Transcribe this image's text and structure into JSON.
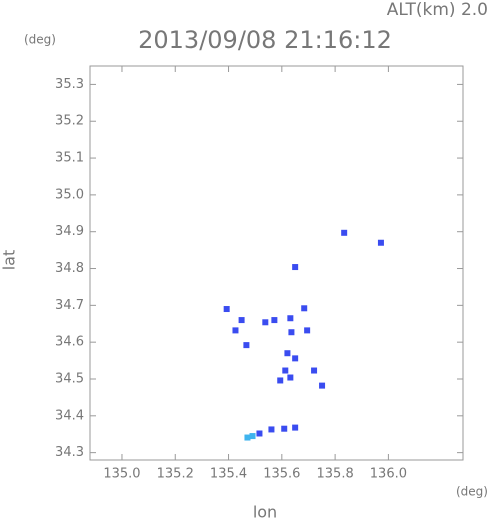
{
  "chart_data": {
    "type": "scatter",
    "title": "2013/09/08 21:16:12",
    "altitude": "ALT(km) 2.0",
    "y_unit": "(deg)",
    "x_unit": "(deg)",
    "x_label": "lon",
    "y_label": "lat",
    "xlim": [
      134.88,
      136.28
    ],
    "ylim": [
      34.28,
      35.35
    ],
    "xticks": [
      {
        "value": 135,
        "label": "135.0"
      },
      135.2,
      135.4,
      135.6,
      135.8,
      {
        "value": 136,
        "label": "136.0"
      }
    ],
    "yticks": [
      34.3,
      34.4,
      34.5,
      34.6,
      34.7,
      34.8,
      34.9,
      {
        "value": 35,
        "label": "35.0"
      },
      35.1,
      35.2,
      35.3
    ],
    "series": [
      {
        "color": "#3a4cf0",
        "x": [
          135.426,
          135.393,
          135.449,
          135.538,
          135.572,
          135.632,
          135.65,
          135.684,
          135.636,
          135.695,
          135.621,
          135.65,
          135.613,
          135.632,
          135.594,
          135.751,
          135.721,
          135.834,
          135.972,
          135.467,
          135.516,
          135.561,
          135.609,
          135.65
        ],
        "values": [
          34.632,
          34.69,
          34.66,
          34.654,
          34.66,
          34.665,
          34.804,
          34.692,
          34.627,
          34.632,
          34.57,
          34.556,
          34.523,
          34.504,
          34.496,
          34.482,
          34.523,
          34.897,
          34.87,
          34.592,
          34.352,
          34.363,
          34.365,
          34.368
        ]
      },
      {
        "color": "#3fb4ee",
        "x": [
          135.471,
          135.49
        ],
        "values": [
          34.341,
          34.345
        ]
      }
    ]
  }
}
